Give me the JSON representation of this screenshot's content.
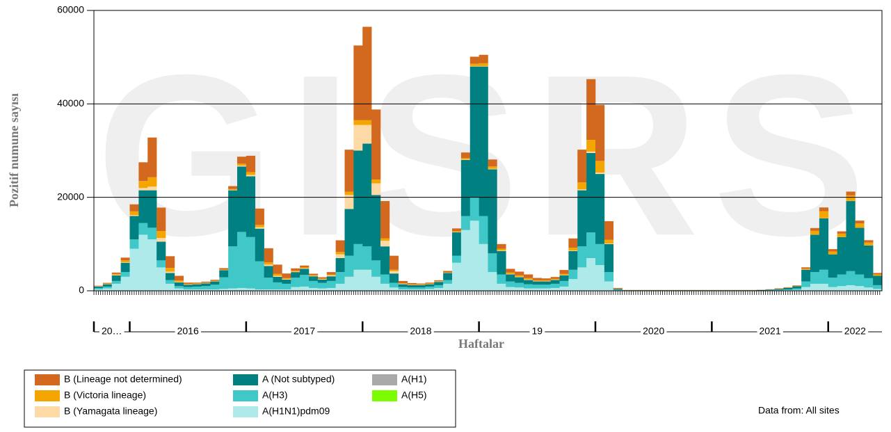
{
  "chart_data": {
    "type": "bar",
    "stacked": true,
    "watermark": "GISRS",
    "y_label": "Pozitif numune sayısı",
    "x_label": "Haftalar",
    "source_note": "Data from: All sites",
    "ylim": [
      0,
      60000
    ],
    "yticks": [
      0,
      20000,
      40000,
      60000
    ],
    "grid": true,
    "categories": [
      "20…",
      null,
      null,
      null,
      "2016",
      null,
      null,
      null,
      null,
      null,
      null,
      null,
      null,
      null,
      null,
      null,
      null,
      "2017",
      null,
      null,
      null,
      null,
      null,
      null,
      null,
      null,
      null,
      null,
      null,
      null,
      "2018",
      null,
      null,
      null,
      null,
      null,
      null,
      null,
      null,
      null,
      null,
      null,
      null,
      "19",
      null,
      null,
      null,
      null,
      null,
      null,
      null,
      null,
      null,
      null,
      null,
      null,
      "2020",
      null,
      null,
      null,
      null,
      null,
      null,
      null,
      null,
      null,
      null,
      null,
      null,
      "2021",
      null,
      null,
      null,
      null,
      null,
      null,
      null,
      null,
      null,
      null,
      null,
      null,
      "2022",
      null,
      null,
      null,
      null,
      null
    ],
    "series": [
      {
        "name": "B (Lineage not determined)",
        "color": "#d2691e",
        "values": [
          100,
          150,
          300,
          600,
          1500,
          4000,
          8500,
          5000,
          2500,
          1000,
          300,
          200,
          200,
          200,
          300,
          600,
          1500,
          3500,
          3500,
          3000,
          2000,
          1000,
          500,
          400,
          300,
          300,
          500,
          2500,
          9000,
          16000,
          20000,
          15000,
          8000,
          3000,
          500,
          300,
          200,
          200,
          200,
          300,
          600,
          1200,
          1500,
          1800,
          1500,
          1000,
          800,
          800,
          800,
          500,
          400,
          400,
          800,
          2000,
          7000,
          13000,
          12000,
          4000,
          150,
          40,
          40,
          40,
          40,
          40,
          40,
          40,
          40,
          40,
          40,
          40,
          40,
          40,
          40,
          40,
          50,
          60,
          80,
          100,
          100,
          300,
          600,
          800,
          500,
          500,
          800,
          600,
          500,
          300
        ]
      },
      {
        "name": "B (Victoria lineage)",
        "color": "#f5a500",
        "values": [
          50,
          100,
          200,
          400,
          800,
          1500,
          2000,
          1500,
          800,
          300,
          100,
          100,
          100,
          100,
          100,
          200,
          400,
          600,
          500,
          500,
          400,
          200,
          200,
          200,
          150,
          100,
          200,
          500,
          700,
          1000,
          1000,
          800,
          500,
          300,
          100,
          100,
          100,
          100,
          100,
          100,
          200,
          300,
          500,
          600,
          500,
          400,
          300,
          300,
          300,
          200,
          200,
          200,
          300,
          600,
          1500,
          2500,
          2500,
          800,
          50,
          10,
          10,
          10,
          10,
          10,
          10,
          10,
          10,
          10,
          10,
          10,
          10,
          10,
          10,
          10,
          10,
          20,
          30,
          40,
          50,
          200,
          800,
          1500,
          600,
          700,
          1200,
          900,
          600,
          300
        ]
      },
      {
        "name": "B (Yamagata lineage)",
        "color": "#fdd9a6",
        "values": [
          50,
          50,
          100,
          100,
          200,
          500,
          800,
          800,
          300,
          100,
          50,
          50,
          50,
          50,
          50,
          100,
          200,
          300,
          300,
          300,
          200,
          100,
          100,
          100,
          100,
          100,
          200,
          800,
          3000,
          5500,
          4000,
          2500,
          1200,
          500,
          100,
          50,
          50,
          50,
          50,
          50,
          50,
          100,
          100,
          100,
          100,
          100,
          100,
          100,
          100,
          50,
          50,
          50,
          50,
          100,
          200,
          300,
          300,
          100,
          10,
          5,
          5,
          5,
          5,
          5,
          5,
          5,
          5,
          5,
          5,
          5,
          5,
          5,
          5,
          5,
          5,
          5,
          10,
          10,
          10,
          20,
          30,
          30,
          20,
          20,
          30,
          20,
          20,
          10
        ]
      },
      {
        "name": "A (Not subtyped)",
        "color": "#008080",
        "values": [
          300,
          500,
          1200,
          2000,
          5000,
          7000,
          8000,
          4000,
          1500,
          800,
          500,
          500,
          600,
          700,
          1500,
          12000,
          14000,
          13000,
          7000,
          2500,
          1200,
          900,
          1200,
          1300,
          1000,
          700,
          1000,
          3000,
          10000,
          20000,
          22000,
          14000,
          6000,
          2000,
          600,
          500,
          500,
          500,
          700,
          1500,
          5000,
          12000,
          28000,
          32000,
          18000,
          5000,
          1500,
          1200,
          900,
          700,
          700,
          800,
          1200,
          4000,
          12000,
          17000,
          15000,
          6000,
          200,
          60,
          60,
          60,
          60,
          60,
          60,
          60,
          60,
          60,
          60,
          60,
          60,
          60,
          60,
          60,
          80,
          120,
          200,
          300,
          500,
          2500,
          8000,
          11000,
          5000,
          8000,
          15000,
          10000,
          7000,
          2000
        ]
      },
      {
        "name": "A(H3)",
        "color": "#40c8c8",
        "values": [
          300,
          400,
          600,
          1000,
          2000,
          2500,
          2500,
          1500,
          800,
          500,
          500,
          600,
          700,
          1000,
          2500,
          9000,
          12000,
          11000,
          6000,
          2500,
          1500,
          1200,
          2000,
          2500,
          1500,
          1200,
          1500,
          2500,
          4500,
          5500,
          5000,
          3500,
          2000,
          1000,
          500,
          400,
          400,
          500,
          600,
          800,
          1500,
          3000,
          5000,
          6000,
          4000,
          2000,
          1200,
          1000,
          900,
          800,
          800,
          900,
          1200,
          2000,
          4500,
          5500,
          4500,
          2000,
          100,
          30,
          30,
          30,
          30,
          30,
          30,
          30,
          30,
          30,
          30,
          30,
          30,
          30,
          30,
          30,
          40,
          60,
          100,
          150,
          300,
          1200,
          2500,
          3000,
          2000,
          2500,
          3000,
          2500,
          2000,
          800
        ]
      },
      {
        "name": "A(H1N1)pdm09",
        "color": "#aeeaea",
        "values": [
          300,
          500,
          1500,
          3000,
          9000,
          12000,
          11000,
          5000,
          1500,
          500,
          300,
          300,
          300,
          300,
          400,
          500,
          600,
          500,
          300,
          300,
          300,
          300,
          800,
          900,
          600,
          500,
          600,
          1500,
          3000,
          4500,
          4500,
          3000,
          1500,
          700,
          300,
          300,
          300,
          400,
          600,
          1500,
          6000,
          13000,
          15000,
          10000,
          4000,
          1500,
          800,
          700,
          500,
          500,
          500,
          600,
          900,
          2500,
          5000,
          7000,
          5500,
          2000,
          100,
          30,
          30,
          30,
          30,
          30,
          30,
          30,
          30,
          30,
          30,
          30,
          30,
          30,
          30,
          30,
          40,
          60,
          100,
          150,
          200,
          800,
          1500,
          1500,
          800,
          1000,
          1200,
          1000,
          700,
          400
        ]
      },
      {
        "name": "A(H1)",
        "color": "#a9a9a9",
        "values": [
          0,
          0,
          0,
          0,
          0,
          0,
          0,
          0,
          0,
          0,
          0,
          0,
          0,
          0,
          0,
          0,
          0,
          0,
          0,
          0,
          0,
          0,
          0,
          0,
          0,
          0,
          0,
          0,
          0,
          0,
          0,
          0,
          0,
          0,
          0,
          0,
          0,
          0,
          0,
          0,
          0,
          0,
          0,
          0,
          0,
          0,
          0,
          0,
          0,
          0,
          0,
          0,
          0,
          0,
          0,
          0,
          0,
          0,
          0,
          0,
          0,
          0,
          0,
          0,
          0,
          0,
          0,
          0,
          0,
          0,
          0,
          0,
          0,
          0,
          0,
          0,
          0,
          0,
          0,
          0,
          0,
          0,
          0,
          0,
          0,
          0,
          0,
          0
        ]
      },
      {
        "name": "A(H5)",
        "color": "#7cfc00",
        "values": [
          0,
          0,
          0,
          0,
          0,
          0,
          0,
          0,
          0,
          0,
          0,
          0,
          0,
          0,
          0,
          0,
          0,
          0,
          0,
          0,
          0,
          0,
          0,
          0,
          0,
          0,
          0,
          0,
          0,
          0,
          0,
          0,
          0,
          0,
          0,
          0,
          0,
          0,
          0,
          0,
          0,
          0,
          0,
          0,
          0,
          0,
          0,
          0,
          0,
          0,
          0,
          0,
          0,
          0,
          0,
          0,
          0,
          0,
          0,
          0,
          0,
          0,
          0,
          0,
          0,
          0,
          0,
          0,
          0,
          0,
          0,
          0,
          0,
          0,
          0,
          0,
          0,
          0,
          0,
          0,
          0,
          0,
          0,
          0,
          0,
          0,
          0,
          0
        ]
      }
    ]
  }
}
